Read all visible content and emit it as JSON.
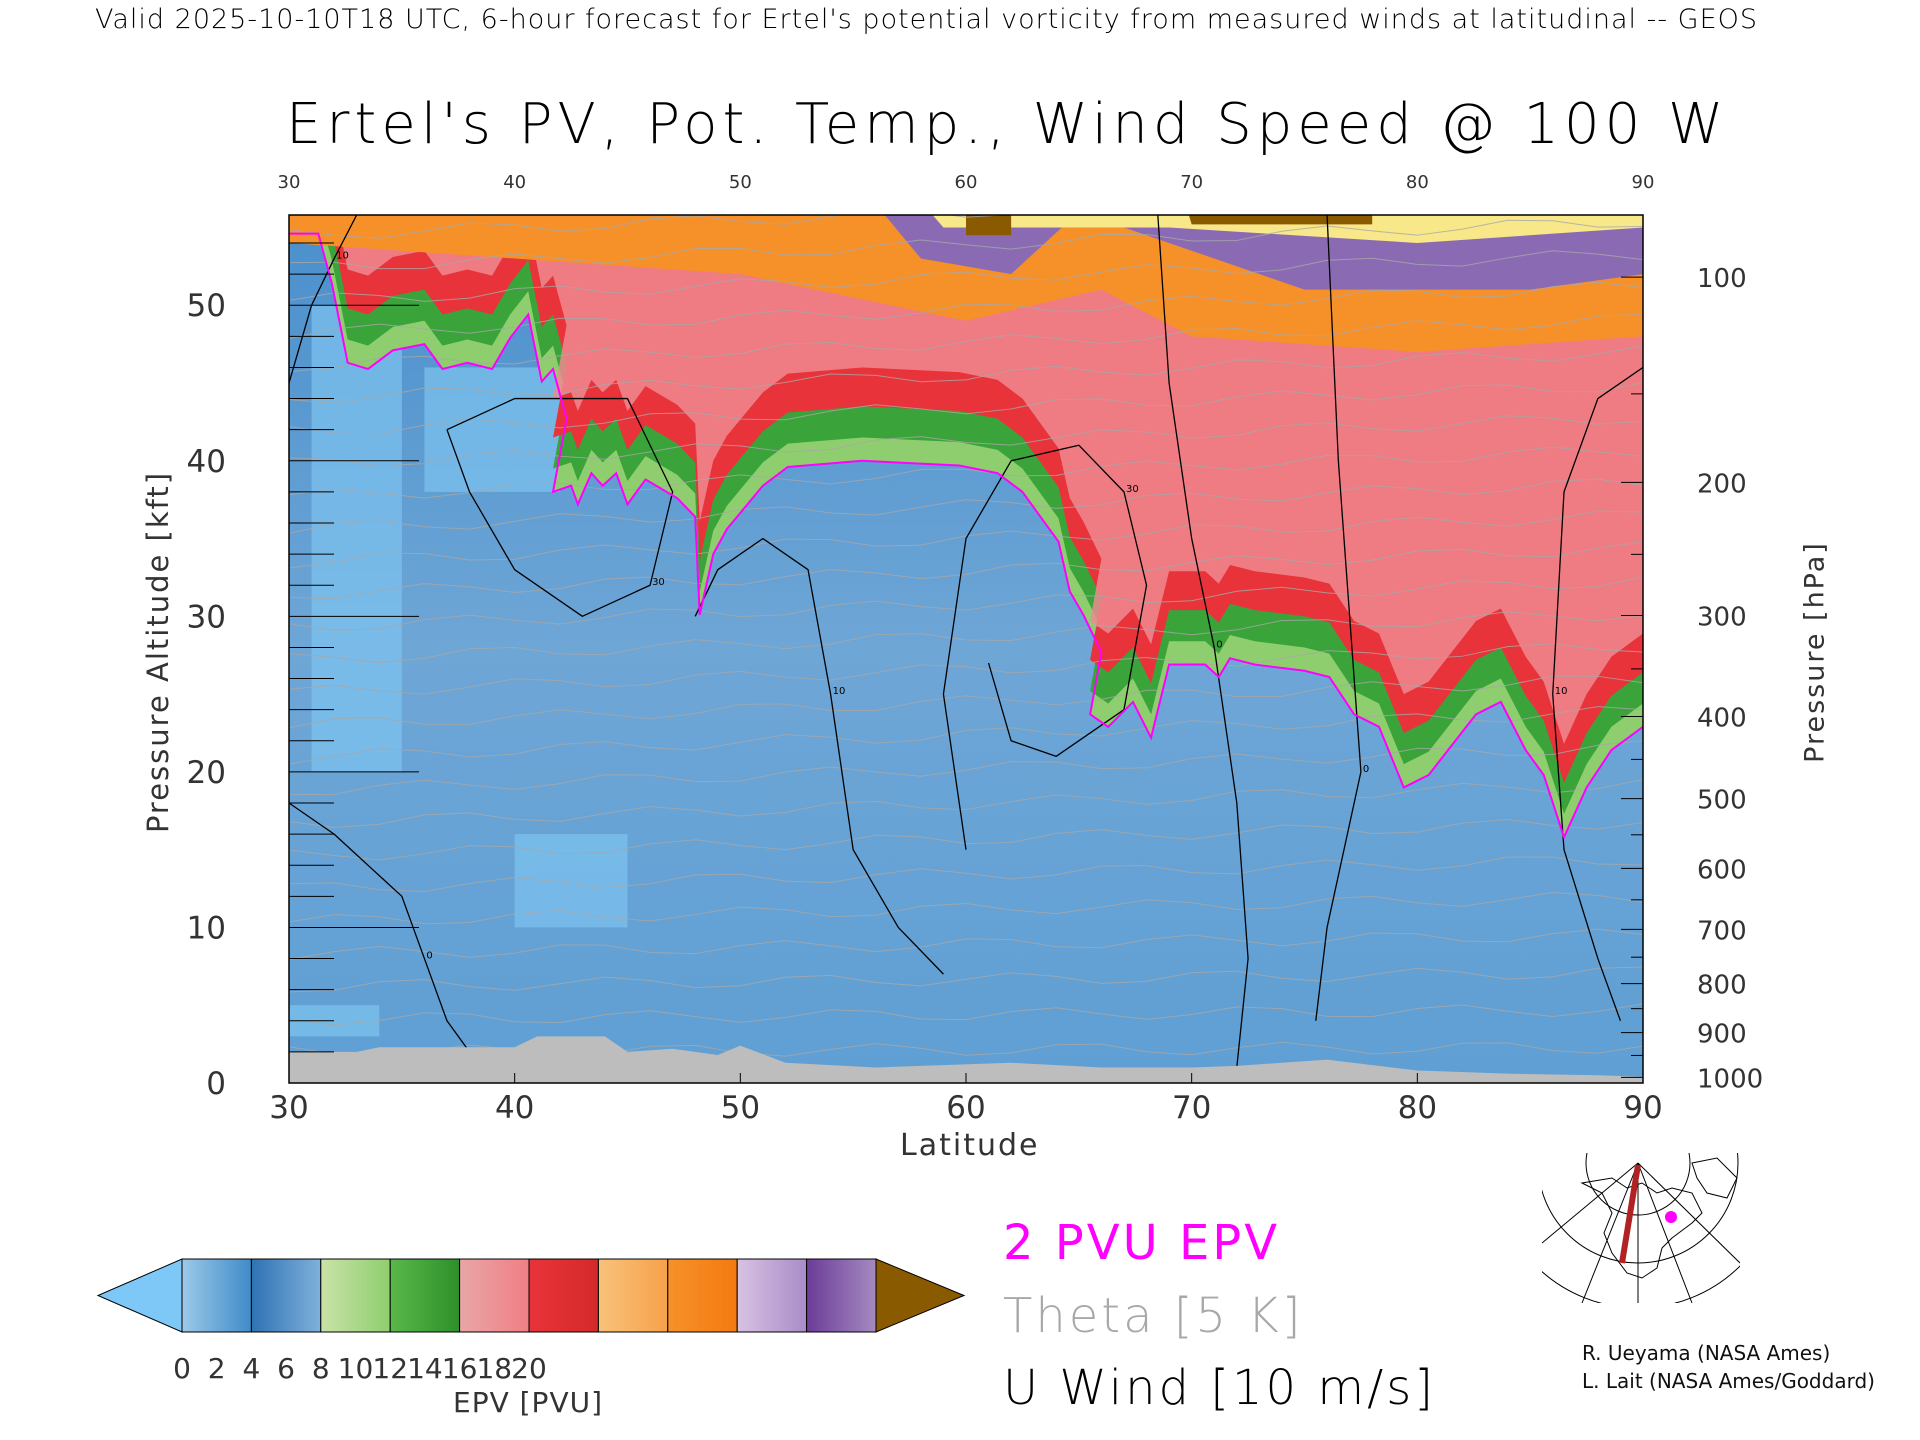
{
  "header": "Valid 2025-10-10T18 UTC, 6-hour forecast for Ertel's potential vorticity from measured winds at latitudinal -- GEOS",
  "chart_data": {
    "type": "heatmap",
    "title": "Ertel's PV, Pot. Temp., Wind Speed @ 100 W",
    "xlabel": "Latitude",
    "ylabel": "Pressure Altitude [kft]",
    "y2label": "Pressure [hPa]",
    "xlim": [
      30,
      90
    ],
    "ylim": [
      0,
      55.8
    ],
    "x_ticks": [
      30,
      40,
      50,
      60,
      70,
      80,
      90
    ],
    "top_ticks": [
      30,
      40,
      50,
      60,
      70,
      80,
      90
    ],
    "y_ticks": [
      0,
      10,
      20,
      30,
      40,
      50
    ],
    "pressure_ticks": [
      100,
      200,
      300,
      400,
      500,
      600,
      700,
      800,
      900,
      1000
    ],
    "pv2_contour_lat_kft": [
      [
        30,
        54.6
      ],
      [
        31.3,
        54.6
      ],
      [
        31.9,
        51.4
      ],
      [
        32.6,
        46.3
      ],
      [
        33.5,
        45.9
      ],
      [
        34.6,
        47.1
      ],
      [
        36.0,
        47.5
      ],
      [
        36.8,
        45.9
      ],
      [
        37.9,
        46.3
      ],
      [
        39.0,
        45.9
      ],
      [
        39.8,
        47.9
      ],
      [
        40.6,
        49.4
      ],
      [
        41.2,
        45.1
      ],
      [
        41.7,
        45.9
      ],
      [
        42.3,
        42.7
      ],
      [
        41.7,
        38.0
      ],
      [
        42.5,
        38.4
      ],
      [
        42.8,
        37.2
      ],
      [
        43.4,
        39.2
      ],
      [
        43.9,
        38.4
      ],
      [
        44.5,
        39.2
      ],
      [
        45.0,
        37.2
      ],
      [
        45.8,
        38.8
      ],
      [
        47.2,
        37.6
      ],
      [
        48.0,
        36.4
      ],
      [
        48.2,
        30.1
      ],
      [
        48.8,
        34.0
      ],
      [
        49.4,
        35.6
      ],
      [
        51.0,
        38.4
      ],
      [
        52.1,
        39.6
      ],
      [
        55.4,
        40.0
      ],
      [
        59.7,
        39.7
      ],
      [
        61.4,
        39.2
      ],
      [
        62.5,
        38.0
      ],
      [
        64.1,
        34.8
      ],
      [
        64.6,
        31.6
      ],
      [
        65.2,
        30.1
      ],
      [
        66.0,
        27.7
      ],
      [
        65.5,
        23.7
      ],
      [
        66.3,
        22.9
      ],
      [
        67.4,
        24.5
      ],
      [
        68.2,
        22.2
      ],
      [
        69.0,
        26.9
      ],
      [
        70.6,
        26.9
      ],
      [
        71.2,
        26.1
      ],
      [
        71.7,
        27.3
      ],
      [
        72.8,
        26.9
      ],
      [
        75.0,
        26.5
      ],
      [
        76.1,
        26.1
      ],
      [
        77.2,
        23.7
      ],
      [
        78.3,
        22.9
      ],
      [
        79.4,
        19.0
      ],
      [
        80.5,
        19.8
      ],
      [
        82.6,
        23.7
      ],
      [
        83.7,
        24.5
      ],
      [
        84.8,
        21.4
      ],
      [
        85.6,
        19.8
      ],
      [
        86.5,
        15.8
      ],
      [
        87.5,
        19.0
      ],
      [
        88.6,
        21.4
      ],
      [
        90,
        22.9
      ]
    ],
    "u_wind_contours": [
      {
        "label": "10",
        "points": [
          [
            30,
            45
          ],
          [
            31,
            50
          ],
          [
            32,
            53
          ],
          [
            33,
            55.8
          ]
        ]
      },
      {
        "label": "30",
        "points": [
          [
            37,
            42
          ],
          [
            40,
            44
          ],
          [
            45,
            44
          ],
          [
            47,
            38
          ],
          [
            46,
            32
          ],
          [
            43,
            30
          ],
          [
            40,
            33
          ],
          [
            38,
            38
          ],
          [
            37,
            42
          ]
        ]
      },
      {
        "label": "10",
        "points": [
          [
            48,
            30
          ],
          [
            49,
            33
          ],
          [
            51,
            35
          ],
          [
            53,
            33
          ],
          [
            54,
            25
          ],
          [
            55,
            15
          ],
          [
            57,
            10
          ],
          [
            59,
            7
          ]
        ]
      },
      {
        "label": "30",
        "points": [
          [
            60,
            15
          ],
          [
            59,
            25
          ],
          [
            60,
            35
          ],
          [
            62,
            40
          ],
          [
            65,
            41
          ],
          [
            67,
            38
          ],
          [
            68,
            32
          ],
          [
            67,
            24
          ],
          [
            64,
            21
          ],
          [
            62,
            22
          ],
          [
            61,
            27
          ]
        ]
      },
      {
        "label": "0",
        "points": [
          [
            68.5,
            55.8
          ],
          [
            69,
            45
          ],
          [
            70,
            35
          ],
          [
            71,
            28
          ],
          [
            72,
            18
          ],
          [
            72.5,
            8
          ],
          [
            72,
            1
          ]
        ]
      },
      {
        "label": "0",
        "points": [
          [
            76,
            55.8
          ],
          [
            76.5,
            40
          ],
          [
            77,
            30
          ],
          [
            77.5,
            20
          ],
          [
            76,
            10
          ],
          [
            75.5,
            4
          ]
        ]
      },
      {
        "label": "10",
        "points": [
          [
            90,
            46
          ],
          [
            88,
            44
          ],
          [
            86.5,
            38
          ],
          [
            86,
            25
          ],
          [
            86.5,
            15
          ],
          [
            88,
            8
          ],
          [
            89,
            4
          ]
        ]
      },
      {
        "label": "0",
        "points": [
          [
            30,
            18
          ],
          [
            32,
            16
          ],
          [
            35,
            12
          ],
          [
            36,
            8
          ],
          [
            37,
            4
          ],
          [
            38,
            2
          ]
        ]
      }
    ],
    "colorbar": {
      "label": "EPV [PVU]",
      "ticks": [
        0,
        2,
        4,
        6,
        8,
        10,
        12,
        14,
        16,
        18,
        20
      ],
      "segments": [
        [
          "#9cc9e8",
          "#3f8bc9"
        ],
        [
          "#2f72b4",
          "#7fb1db"
        ],
        [
          "#c9e3a8",
          "#8fce6e"
        ],
        [
          "#5ab84a",
          "#2e8f2a"
        ],
        [
          "#e8a6a6",
          "#f07f86"
        ],
        [
          "#e8333a",
          "#d42a2a"
        ],
        [
          "#f8c27a",
          "#f7a14a"
        ],
        [
          "#f6912a",
          "#f47a10"
        ],
        [
          "#d8c2e2",
          "#a98cc8"
        ],
        [
          "#6b3c98",
          "#a58bc0"
        ],
        [
          "#fbf3a0",
          "#f0c878"
        ]
      ],
      "under_color": "#7ec8f8",
      "over_color": "#8a5a00"
    },
    "legend": [
      "2 PVU EPV",
      "Theta [5 K]",
      "U Wind [10 m/s]"
    ],
    "legend_colors": [
      "#ff00ff",
      "#a8a8a8",
      "#000000"
    ]
  },
  "credits": [
    "R. Ueyama (NASA Ames)",
    "L. Lait (NASA Ames/Goddard)"
  ]
}
